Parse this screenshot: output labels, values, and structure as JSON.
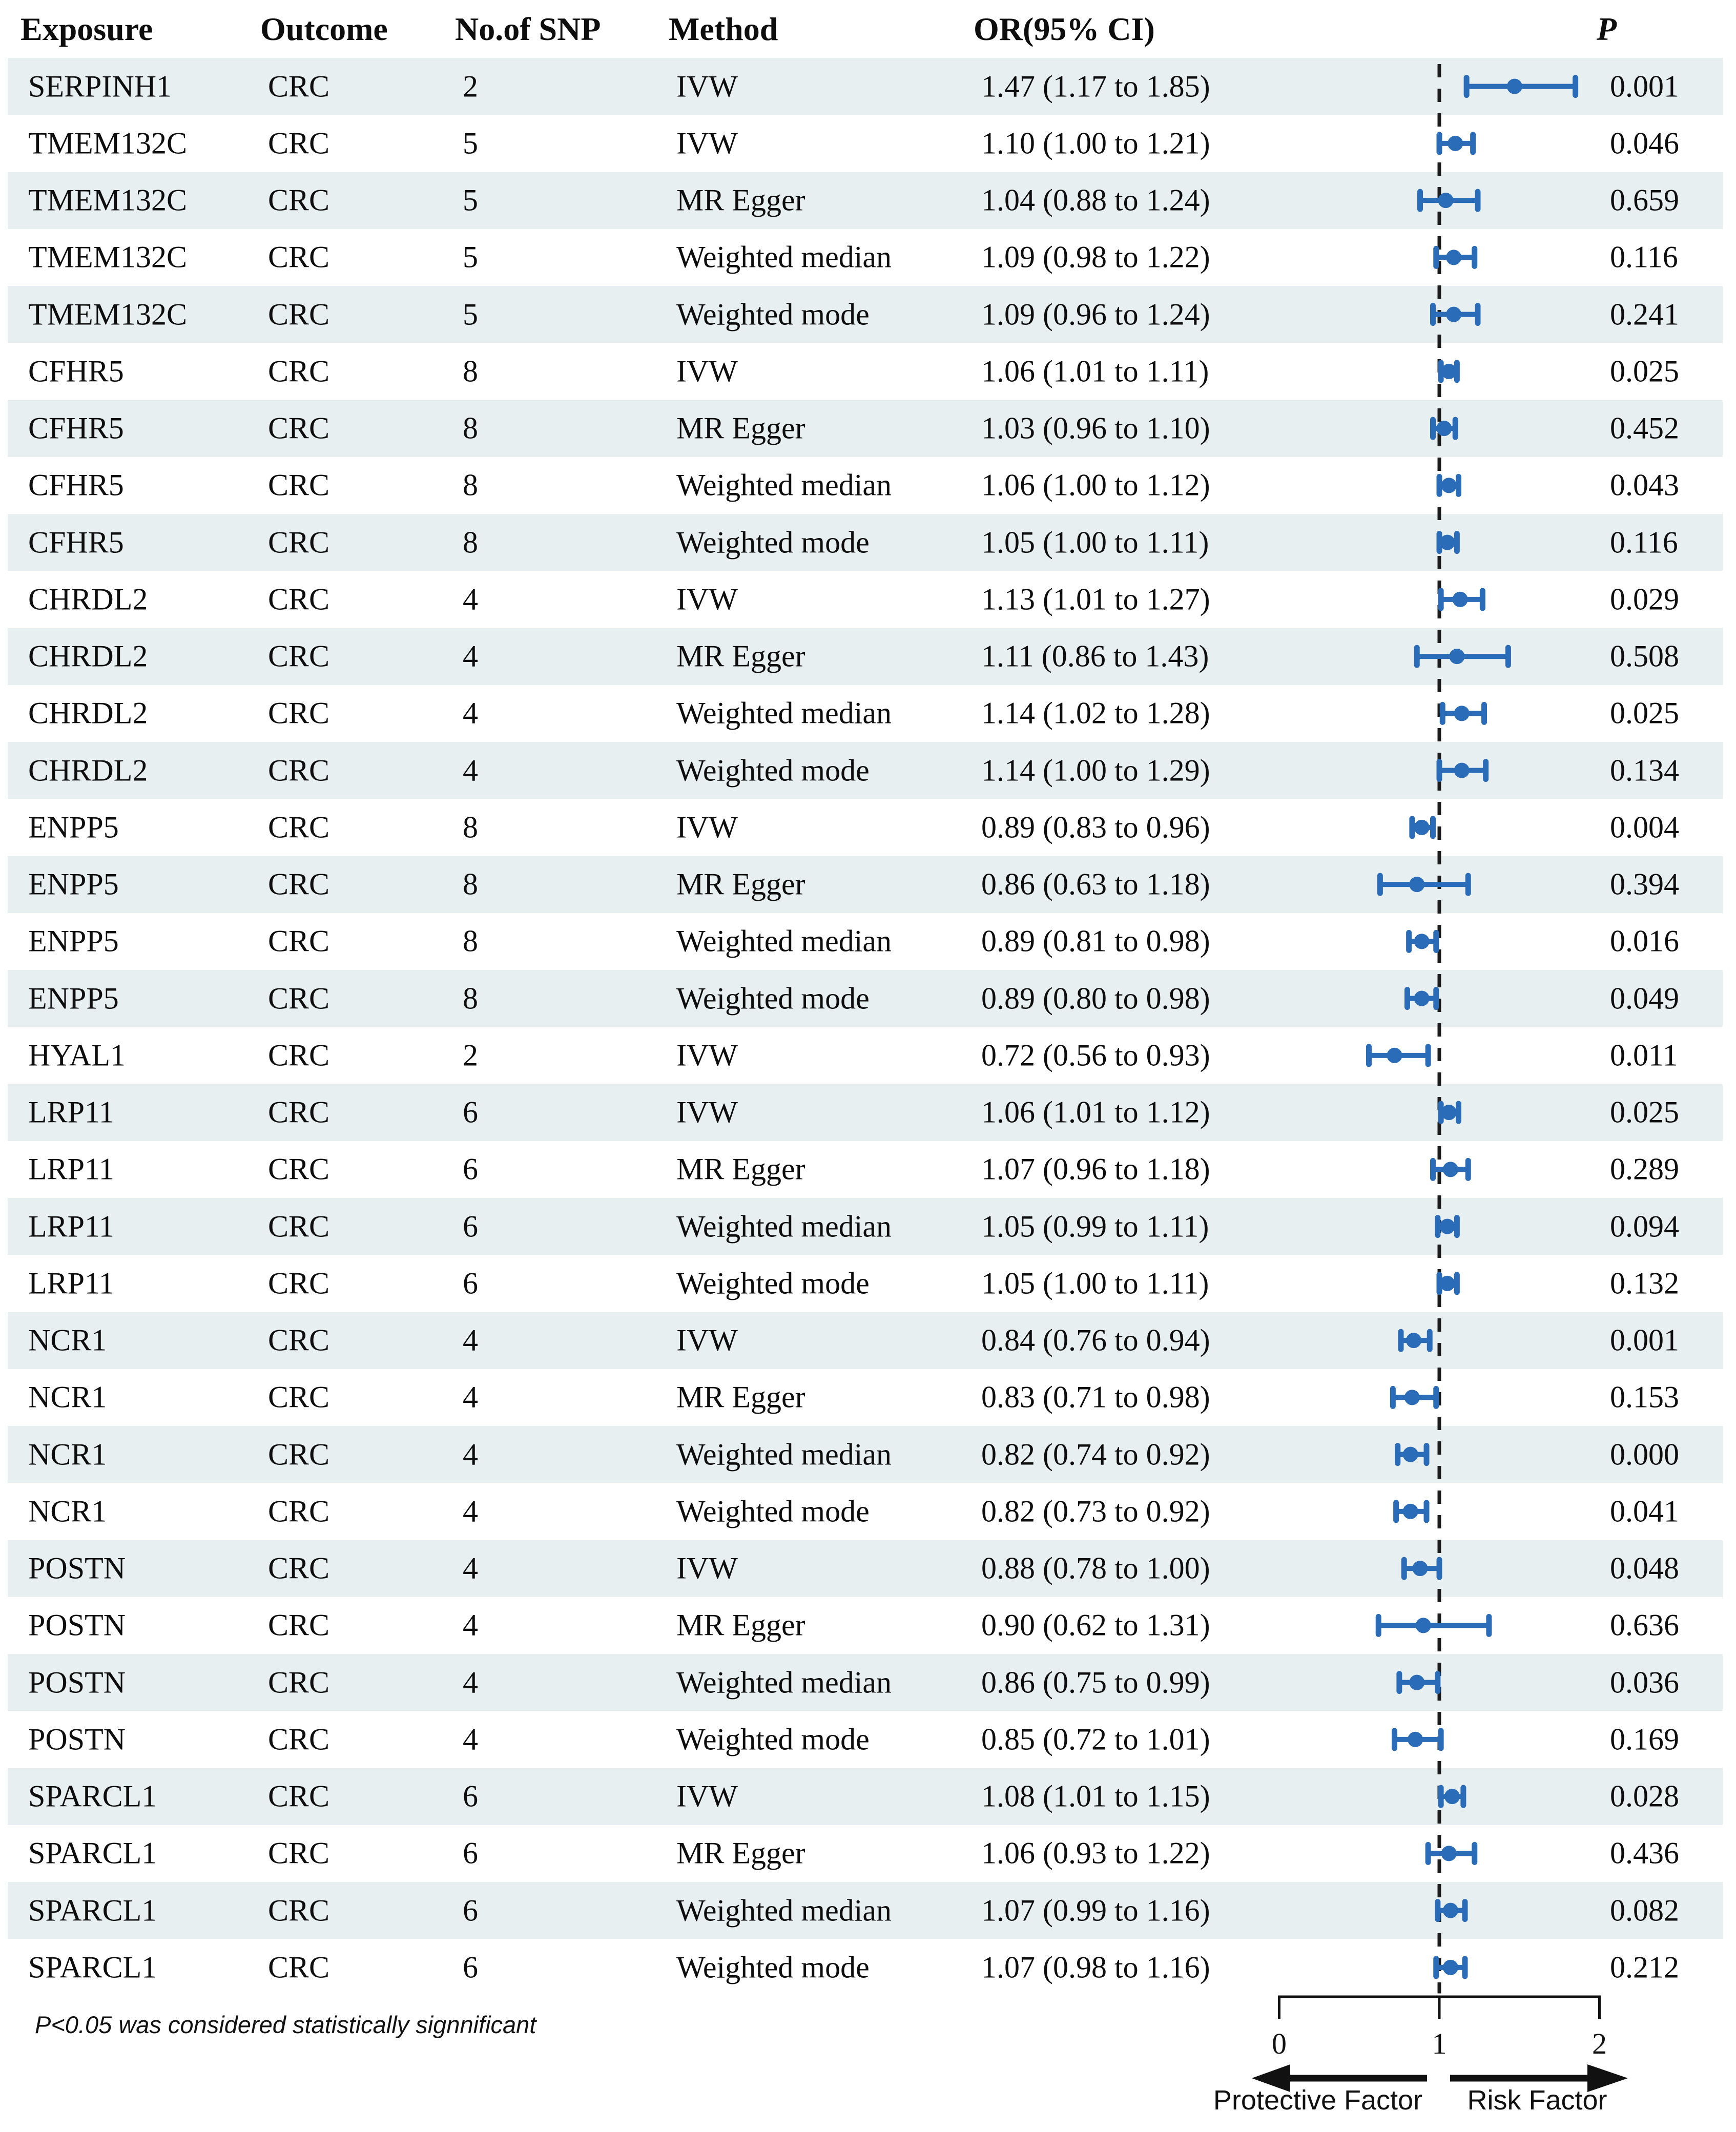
{
  "header": {
    "exposure": "Exposure",
    "outcome": "Outcome",
    "snp": "No.of SNP",
    "method": "Method",
    "or_ci": "OR(95% CI)",
    "p": "P"
  },
  "footnote": "P<0.05 was considered statistically signnificant",
  "axis": {
    "tick_labels": [
      "0",
      "1",
      "2"
    ],
    "tick_values": [
      0,
      1,
      2
    ],
    "reference_value": 1,
    "left_label": "Protective Factor",
    "right_label": "Risk Factor"
  },
  "colors": {
    "marker": "#2b6cb8",
    "stripe": "#e8eff0",
    "text": "#0e0e0e",
    "dashed_line": "#1c1c1c",
    "axis": "#111111"
  },
  "chart_data": {
    "type": "scatter",
    "subtype": "forest-plot",
    "title": "",
    "xlabel": "",
    "ylabel": "",
    "xlim": [
      0,
      2
    ],
    "x_ticks": [
      0,
      1,
      2
    ],
    "reference_line": 1,
    "grid": false,
    "legend_position": "none",
    "columns": [
      "Exposure",
      "Outcome",
      "No.of SNP",
      "Method",
      "OR(95% CI)",
      "P"
    ],
    "rows": [
      {
        "exposure": "SERPINH1",
        "outcome": "CRC",
        "snp": "2",
        "method": "IVW",
        "or": 1.47,
        "ci_low": 1.17,
        "ci_high": 1.85,
        "or_ci": "1.47 (1.17 to 1.85)",
        "p": "0.001"
      },
      {
        "exposure": "TMEM132C",
        "outcome": "CRC",
        "snp": "5",
        "method": "IVW",
        "or": 1.1,
        "ci_low": 1.0,
        "ci_high": 1.21,
        "or_ci": "1.10 (1.00 to 1.21)",
        "p": "0.046"
      },
      {
        "exposure": "TMEM132C",
        "outcome": "CRC",
        "snp": "5",
        "method": "MR Egger",
        "or": 1.04,
        "ci_low": 0.88,
        "ci_high": 1.24,
        "or_ci": "1.04 (0.88 to 1.24)",
        "p": "0.659"
      },
      {
        "exposure": "TMEM132C",
        "outcome": "CRC",
        "snp": "5",
        "method": "Weighted median",
        "or": 1.09,
        "ci_low": 0.98,
        "ci_high": 1.22,
        "or_ci": "1.09 (0.98 to 1.22)",
        "p": "0.116"
      },
      {
        "exposure": "TMEM132C",
        "outcome": "CRC",
        "snp": "5",
        "method": "Weighted mode",
        "or": 1.09,
        "ci_low": 0.96,
        "ci_high": 1.24,
        "or_ci": "1.09 (0.96 to 1.24)",
        "p": "0.241"
      },
      {
        "exposure": "CFHR5",
        "outcome": "CRC",
        "snp": "8",
        "method": "IVW",
        "or": 1.06,
        "ci_low": 1.01,
        "ci_high": 1.11,
        "or_ci": "1.06 (1.01 to 1.11)",
        "p": "0.025"
      },
      {
        "exposure": "CFHR5",
        "outcome": "CRC",
        "snp": "8",
        "method": "MR Egger",
        "or": 1.03,
        "ci_low": 0.96,
        "ci_high": 1.1,
        "or_ci": "1.03 (0.96 to 1.10)",
        "p": "0.452"
      },
      {
        "exposure": "CFHR5",
        "outcome": "CRC",
        "snp": "8",
        "method": "Weighted median",
        "or": 1.06,
        "ci_low": 1.0,
        "ci_high": 1.12,
        "or_ci": "1.06 (1.00 to 1.12)",
        "p": "0.043"
      },
      {
        "exposure": "CFHR5",
        "outcome": "CRC",
        "snp": "8",
        "method": "Weighted mode",
        "or": 1.05,
        "ci_low": 1.0,
        "ci_high": 1.11,
        "or_ci": "1.05 (1.00 to 1.11)",
        "p": "0.116"
      },
      {
        "exposure": "CHRDL2",
        "outcome": "CRC",
        "snp": "4",
        "method": "IVW",
        "or": 1.13,
        "ci_low": 1.01,
        "ci_high": 1.27,
        "or_ci": "1.13 (1.01 to 1.27)",
        "p": "0.029"
      },
      {
        "exposure": "CHRDL2",
        "outcome": "CRC",
        "snp": "4",
        "method": "MR Egger",
        "or": 1.11,
        "ci_low": 0.86,
        "ci_high": 1.43,
        "or_ci": "1.11 (0.86 to 1.43)",
        "p": "0.508"
      },
      {
        "exposure": "CHRDL2",
        "outcome": "CRC",
        "snp": "4",
        "method": "Weighted median",
        "or": 1.14,
        "ci_low": 1.02,
        "ci_high": 1.28,
        "or_ci": "1.14 (1.02 to 1.28)",
        "p": "0.025"
      },
      {
        "exposure": "CHRDL2",
        "outcome": "CRC",
        "snp": "4",
        "method": "Weighted mode",
        "or": 1.14,
        "ci_low": 1.0,
        "ci_high": 1.29,
        "or_ci": "1.14 (1.00 to 1.29)",
        "p": "0.134"
      },
      {
        "exposure": "ENPP5",
        "outcome": "CRC",
        "snp": "8",
        "method": "IVW",
        "or": 0.89,
        "ci_low": 0.83,
        "ci_high": 0.96,
        "or_ci": "0.89 (0.83 to 0.96)",
        "p": "0.004"
      },
      {
        "exposure": "ENPP5",
        "outcome": "CRC",
        "snp": "8",
        "method": "MR Egger",
        "or": 0.86,
        "ci_low": 0.63,
        "ci_high": 1.18,
        "or_ci": "0.86 (0.63 to 1.18)",
        "p": "0.394"
      },
      {
        "exposure": "ENPP5",
        "outcome": "CRC",
        "snp": "8",
        "method": "Weighted median",
        "or": 0.89,
        "ci_low": 0.81,
        "ci_high": 0.98,
        "or_ci": "0.89 (0.81 to 0.98)",
        "p": "0.016"
      },
      {
        "exposure": "ENPP5",
        "outcome": "CRC",
        "snp": "8",
        "method": "Weighted mode",
        "or": 0.89,
        "ci_low": 0.8,
        "ci_high": 0.98,
        "or_ci": "0.89 (0.80 to 0.98)",
        "p": "0.049"
      },
      {
        "exposure": "HYAL1",
        "outcome": "CRC",
        "snp": "2",
        "method": "IVW",
        "or": 0.72,
        "ci_low": 0.56,
        "ci_high": 0.93,
        "or_ci": "0.72 (0.56 to 0.93)",
        "p": "0.011"
      },
      {
        "exposure": "LRP11",
        "outcome": "CRC",
        "snp": "6",
        "method": "IVW",
        "or": 1.06,
        "ci_low": 1.01,
        "ci_high": 1.12,
        "or_ci": "1.06 (1.01 to 1.12)",
        "p": "0.025"
      },
      {
        "exposure": "LRP11",
        "outcome": "CRC",
        "snp": "6",
        "method": "MR Egger",
        "or": 1.07,
        "ci_low": 0.96,
        "ci_high": 1.18,
        "or_ci": "1.07 (0.96 to 1.18)",
        "p": "0.289"
      },
      {
        "exposure": "LRP11",
        "outcome": "CRC",
        "snp": "6",
        "method": "Weighted median",
        "or": 1.05,
        "ci_low": 0.99,
        "ci_high": 1.11,
        "or_ci": "1.05 (0.99 to 1.11)",
        "p": "0.094"
      },
      {
        "exposure": "LRP11",
        "outcome": "CRC",
        "snp": "6",
        "method": "Weighted mode",
        "or": 1.05,
        "ci_low": 1.0,
        "ci_high": 1.11,
        "or_ci": "1.05 (1.00 to 1.11)",
        "p": "0.132"
      },
      {
        "exposure": "NCR1",
        "outcome": "CRC",
        "snp": "4",
        "method": "IVW",
        "or": 0.84,
        "ci_low": 0.76,
        "ci_high": 0.94,
        "or_ci": "0.84 (0.76 to 0.94)",
        "p": "0.001"
      },
      {
        "exposure": "NCR1",
        "outcome": "CRC",
        "snp": "4",
        "method": "MR Egger",
        "or": 0.83,
        "ci_low": 0.71,
        "ci_high": 0.98,
        "or_ci": "0.83 (0.71 to 0.98)",
        "p": "0.153"
      },
      {
        "exposure": "NCR1",
        "outcome": "CRC",
        "snp": "4",
        "method": "Weighted median",
        "or": 0.82,
        "ci_low": 0.74,
        "ci_high": 0.92,
        "or_ci": "0.82 (0.74 to 0.92)",
        "p": "0.000"
      },
      {
        "exposure": "NCR1",
        "outcome": "CRC",
        "snp": "4",
        "method": "Weighted mode",
        "or": 0.82,
        "ci_low": 0.73,
        "ci_high": 0.92,
        "or_ci": "0.82 (0.73 to 0.92)",
        "p": "0.041"
      },
      {
        "exposure": "POSTN",
        "outcome": "CRC",
        "snp": "4",
        "method": "IVW",
        "or": 0.88,
        "ci_low": 0.78,
        "ci_high": 1.0,
        "or_ci": "0.88 (0.78 to 1.00)",
        "p": "0.048"
      },
      {
        "exposure": "POSTN",
        "outcome": "CRC",
        "snp": "4",
        "method": "MR Egger",
        "or": 0.9,
        "ci_low": 0.62,
        "ci_high": 1.31,
        "or_ci": "0.90 (0.62 to 1.31)",
        "p": "0.636"
      },
      {
        "exposure": "POSTN",
        "outcome": "CRC",
        "snp": "4",
        "method": "Weighted median",
        "or": 0.86,
        "ci_low": 0.75,
        "ci_high": 0.99,
        "or_ci": "0.86 (0.75 to 0.99)",
        "p": "0.036"
      },
      {
        "exposure": "POSTN",
        "outcome": "CRC",
        "snp": "4",
        "method": "Weighted mode",
        "or": 0.85,
        "ci_low": 0.72,
        "ci_high": 1.01,
        "or_ci": "0.85 (0.72 to 1.01)",
        "p": "0.169"
      },
      {
        "exposure": "SPARCL1",
        "outcome": "CRC",
        "snp": "6",
        "method": "IVW",
        "or": 1.08,
        "ci_low": 1.01,
        "ci_high": 1.15,
        "or_ci": "1.08 (1.01 to 1.15)",
        "p": "0.028"
      },
      {
        "exposure": "SPARCL1",
        "outcome": "CRC",
        "snp": "6",
        "method": "MR Egger",
        "or": 1.06,
        "ci_low": 0.93,
        "ci_high": 1.22,
        "or_ci": "1.06 (0.93 to 1.22)",
        "p": "0.436"
      },
      {
        "exposure": "SPARCL1",
        "outcome": "CRC",
        "snp": "6",
        "method": "Weighted median",
        "or": 1.07,
        "ci_low": 0.99,
        "ci_high": 1.16,
        "or_ci": "1.07 (0.99 to 1.16)",
        "p": "0.082"
      },
      {
        "exposure": "SPARCL1",
        "outcome": "CRC",
        "snp": "6",
        "method": "Weighted mode",
        "or": 1.07,
        "ci_low": 0.98,
        "ci_high": 1.16,
        "or_ci": "1.07 (0.98 to 1.16)",
        "p": "0.212"
      }
    ]
  }
}
